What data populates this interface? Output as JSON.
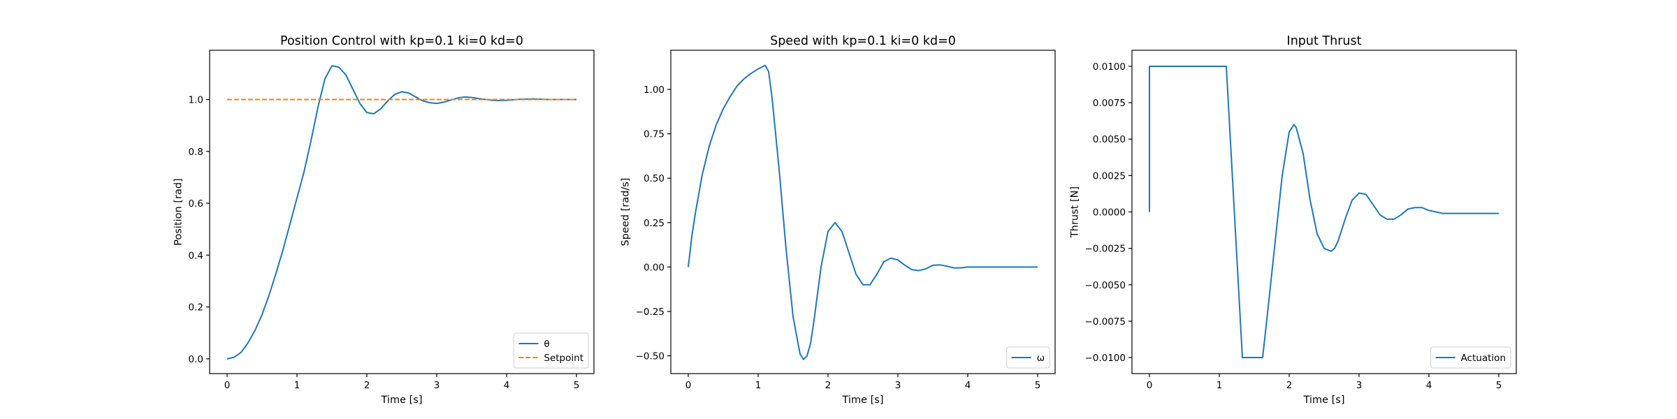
{
  "chart_data": [
    {
      "type": "line",
      "title": "Position Control with kp=0.1 ki=0 kd=0",
      "xlabel": "Time [s]",
      "ylabel": "Position [rad]",
      "xlim": [
        -0.25,
        5.25
      ],
      "ylim": [
        -0.057,
        1.19
      ],
      "xticks": [
        0,
        1,
        2,
        3,
        4,
        5
      ],
      "xtick_labels": [
        "0",
        "1",
        "2",
        "3",
        "4",
        "5"
      ],
      "yticks": [
        0.0,
        0.2,
        0.4,
        0.6,
        0.8,
        1.0
      ],
      "ytick_labels": [
        "0.0",
        "0.2",
        "0.4",
        "0.6",
        "0.8",
        "1.0"
      ],
      "grid": false,
      "legend_position": "lower-right",
      "series": [
        {
          "name": "θ",
          "color": "#1f77b4",
          "style": "solid",
          "x": [
            0,
            0.1,
            0.2,
            0.3,
            0.4,
            0.5,
            0.6,
            0.7,
            0.8,
            0.9,
            1.0,
            1.1,
            1.2,
            1.3,
            1.4,
            1.5,
            1.6,
            1.7,
            1.8,
            1.9,
            2.0,
            2.1,
            2.2,
            2.3,
            2.4,
            2.5,
            2.6,
            2.7,
            2.8,
            2.9,
            3.0,
            3.1,
            3.2,
            3.3,
            3.4,
            3.5,
            3.6,
            3.7,
            3.8,
            3.9,
            4.0,
            4.1,
            4.2,
            4.3,
            4.4,
            4.5,
            4.6,
            4.7,
            4.8,
            4.9,
            5.0
          ],
          "y": [
            0.0,
            0.006,
            0.025,
            0.062,
            0.11,
            0.17,
            0.245,
            0.33,
            0.42,
            0.52,
            0.62,
            0.72,
            0.84,
            0.97,
            1.08,
            1.13,
            1.125,
            1.095,
            1.04,
            0.985,
            0.95,
            0.945,
            0.965,
            0.995,
            1.02,
            1.03,
            1.025,
            1.01,
            0.995,
            0.988,
            0.985,
            0.99,
            0.998,
            1.006,
            1.01,
            1.008,
            1.004,
            1.0,
            0.997,
            0.996,
            0.997,
            0.999,
            1.001,
            1.002,
            1.002,
            1.001,
            1.0,
            1.0,
            1.0,
            1.0,
            1.0
          ]
        },
        {
          "name": "Setpoint",
          "color": "#ff7f0e",
          "style": "dashed",
          "x": [
            0,
            5
          ],
          "y": [
            1.0,
            1.0
          ]
        }
      ]
    },
    {
      "type": "line",
      "title": "Speed with kp=0.1 ki=0 kd=0",
      "xlabel": "Time [s]",
      "ylabel": "Speed [rad/s]",
      "xlim": [
        -0.25,
        5.25
      ],
      "ylim": [
        -0.6,
        1.22
      ],
      "xticks": [
        0,
        1,
        2,
        3,
        4,
        5
      ],
      "xtick_labels": [
        "0",
        "1",
        "2",
        "3",
        "4",
        "5"
      ],
      "yticks": [
        -0.5,
        -0.25,
        0.0,
        0.25,
        0.5,
        0.75,
        1.0
      ],
      "ytick_labels": [
        "−0.50",
        "−0.25",
        "0.00",
        "0.25",
        "0.50",
        "0.75",
        "1.00"
      ],
      "grid": false,
      "legend_position": "lower-right",
      "series": [
        {
          "name": "ω",
          "color": "#1f77b4",
          "style": "solid",
          "x": [
            0,
            0.05,
            0.1,
            0.2,
            0.3,
            0.4,
            0.5,
            0.6,
            0.7,
            0.8,
            0.9,
            1.0,
            1.1,
            1.15,
            1.2,
            1.3,
            1.4,
            1.5,
            1.6,
            1.65,
            1.7,
            1.75,
            1.8,
            1.9,
            2.0,
            2.1,
            2.2,
            2.3,
            2.4,
            2.5,
            2.6,
            2.7,
            2.8,
            2.9,
            3.0,
            3.1,
            3.2,
            3.3,
            3.4,
            3.5,
            3.6,
            3.7,
            3.8,
            3.9,
            4.0,
            4.1,
            4.2,
            4.3,
            4.4,
            4.5,
            4.6,
            4.7,
            4.8,
            4.9,
            5.0
          ],
          "y": [
            0.0,
            0.17,
            0.3,
            0.52,
            0.68,
            0.8,
            0.89,
            0.96,
            1.02,
            1.06,
            1.09,
            1.115,
            1.135,
            1.1,
            0.95,
            0.55,
            0.1,
            -0.28,
            -0.49,
            -0.52,
            -0.5,
            -0.43,
            -0.3,
            0.0,
            0.2,
            0.25,
            0.2,
            0.08,
            -0.04,
            -0.1,
            -0.1,
            -0.04,
            0.03,
            0.05,
            0.04,
            0.01,
            -0.015,
            -0.02,
            -0.01,
            0.01,
            0.012,
            0.005,
            -0.005,
            -0.005,
            0.0,
            0.0,
            0.0,
            0.0,
            0.0,
            0.0,
            0.0,
            0.0,
            0.0,
            0.0,
            0.0
          ]
        }
      ]
    },
    {
      "type": "line",
      "title": "Input Thrust",
      "xlabel": "Time [s]",
      "ylabel": "Thrust [N]",
      "xlim": [
        -0.25,
        5.25
      ],
      "ylim": [
        -0.0111,
        0.0111
      ],
      "xticks": [
        0,
        1,
        2,
        3,
        4,
        5
      ],
      "xtick_labels": [
        "0",
        "1",
        "2",
        "3",
        "4",
        "5"
      ],
      "yticks": [
        -0.01,
        -0.0075,
        -0.005,
        -0.0025,
        0.0,
        0.0025,
        0.005,
        0.0075,
        0.01
      ],
      "ytick_labels": [
        "−0.0100",
        "−0.0075",
        "−0.0050",
        "−0.0025",
        "0.0000",
        "0.0025",
        "0.0050",
        "0.0075",
        "0.0100"
      ],
      "grid": false,
      "legend_position": "lower-right",
      "series": [
        {
          "name": "Actuation",
          "color": "#1f77b4",
          "style": "solid",
          "x": [
            0,
            0.0,
            1.1,
            1.33,
            1.62,
            1.7,
            1.8,
            1.9,
            2.0,
            2.07,
            2.1,
            2.2,
            2.3,
            2.4,
            2.5,
            2.6,
            2.65,
            2.7,
            2.8,
            2.9,
            3.0,
            3.1,
            3.2,
            3.3,
            3.4,
            3.5,
            3.6,
            3.7,
            3.8,
            3.9,
            4.0,
            4.1,
            4.2,
            4.3,
            4.4,
            4.5,
            4.6,
            4.7,
            4.8,
            4.9,
            5.0
          ],
          "y": [
            0.0,
            0.01,
            0.01,
            -0.01,
            -0.01,
            -0.0065,
            -0.002,
            0.0025,
            0.0055,
            0.006,
            0.0058,
            0.004,
            0.0008,
            -0.0015,
            -0.0025,
            -0.0027,
            -0.0025,
            -0.002,
            -0.0005,
            0.0008,
            0.0013,
            0.0012,
            0.0005,
            -0.0002,
            -0.0005,
            -0.0005,
            -0.0002,
            0.0002,
            0.0003,
            0.0003,
            0.0001,
            0.0,
            -0.0001,
            -0.0001,
            -0.0001,
            -0.0001,
            -0.0001,
            -0.0001,
            -0.0001,
            -0.0001,
            -0.0001
          ]
        }
      ]
    }
  ]
}
